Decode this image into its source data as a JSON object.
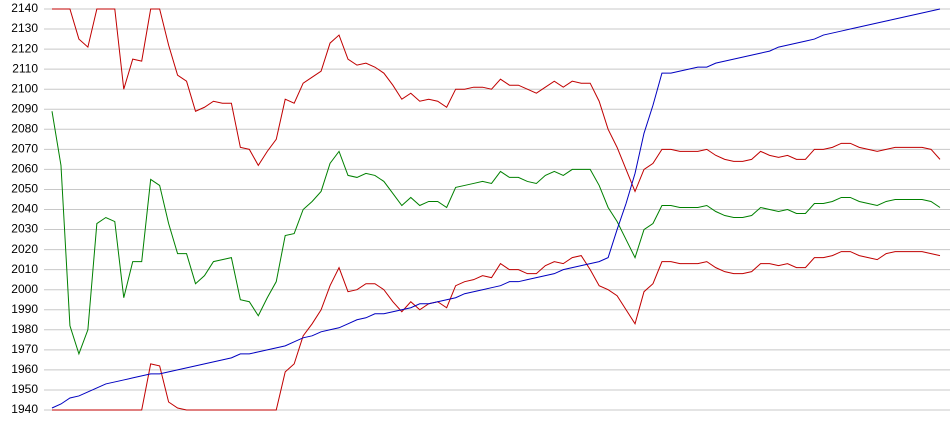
{
  "chart_data": {
    "type": "line",
    "ylim": [
      1940,
      2140
    ],
    "yticks": [
      1940,
      1950,
      1960,
      1970,
      1980,
      1990,
      2000,
      2010,
      2020,
      2030,
      2040,
      2050,
      2060,
      2070,
      2080,
      2090,
      2100,
      2110,
      2120,
      2130,
      2140
    ],
    "grid": true,
    "series": [
      {
        "color": "#c00000",
        "values": [
          2140,
          2140,
          2140,
          2125,
          2121,
          2140,
          2140,
          2140,
          2100,
          2115,
          2114,
          2140,
          2140,
          2122,
          2107,
          2104,
          2089,
          2091,
          2094,
          2093,
          2093,
          2071,
          2070,
          2062,
          2069,
          2075,
          2095,
          2093,
          2103,
          2106,
          2109,
          2123,
          2127,
          2115,
          2112,
          2113,
          2111,
          2108,
          2102,
          2095,
          2098,
          2094,
          2095,
          2094,
          2091,
          2100,
          2100,
          2101,
          2101,
          2100,
          2105,
          2102,
          2102,
          2100,
          2098,
          2101,
          2104,
          2101,
          2104,
          2103,
          2103,
          2094,
          2080,
          2071,
          2060,
          2049,
          2060,
          2063,
          2070,
          2070,
          2069,
          2069,
          2069,
          2070,
          2067,
          2065,
          2064,
          2064,
          2065,
          2069,
          2067,
          2066,
          2067,
          2065,
          2065,
          2070,
          2070,
          2071,
          2073,
          2073,
          2071,
          2070,
          2069,
          2070,
          2071,
          2071,
          2071,
          2071,
          2070,
          2065
        ]
      },
      {
        "color": "#008000",
        "values": [
          2089,
          2062,
          1982,
          1968,
          1980,
          2033,
          2036,
          2034,
          1996,
          2014,
          2014,
          2055,
          2052,
          2033,
          2018,
          2018,
          2003,
          2007,
          2014,
          2015,
          2016,
          1995,
          1994,
          1987,
          1996,
          2004,
          2027,
          2028,
          2040,
          2044,
          2049,
          2063,
          2069,
          2057,
          2056,
          2058,
          2057,
          2054,
          2048,
          2042,
          2046,
          2042,
          2044,
          2044,
          2041,
          2051,
          2052,
          2053,
          2054,
          2053,
          2059,
          2056,
          2056,
          2054,
          2053,
          2057,
          2059,
          2057,
          2060,
          2060,
          2060,
          2052,
          2041,
          2034,
          2025,
          2016,
          2030,
          2033,
          2042,
          2042,
          2041,
          2041,
          2041,
          2042,
          2039,
          2037,
          2036,
          2036,
          2037,
          2041,
          2040,
          2039,
          2040,
          2038,
          2038,
          2043,
          2043,
          2044,
          2046,
          2046,
          2044,
          2043,
          2042,
          2044,
          2045,
          2045,
          2045,
          2045,
          2044,
          2041
        ]
      },
      {
        "color": "#c00000",
        "values": [
          1940,
          1940,
          1940,
          1940,
          1940,
          1940,
          1940,
          1940,
          1940,
          1940,
          1940,
          1963,
          1962,
          1944,
          1941,
          1940,
          1940,
          1940,
          1940,
          1940,
          1940,
          1940,
          1940,
          1940,
          1940,
          1940,
          1959,
          1963,
          1977,
          1983,
          1990,
          2002,
          2011,
          1999,
          2000,
          2003,
          2003,
          2000,
          1994,
          1989,
          1994,
          1990,
          1993,
          1994,
          1991,
          2002,
          2004,
          2005,
          2007,
          2006,
          2013,
          2010,
          2010,
          2008,
          2008,
          2012,
          2014,
          2013,
          2016,
          2017,
          2010,
          2002,
          2000,
          1997,
          1990,
          1983,
          1999,
          2003,
          2014,
          2014,
          2013,
          2013,
          2013,
          2014,
          2011,
          2009,
          2008,
          2008,
          2009,
          2013,
          2013,
          2012,
          2013,
          2011,
          2011,
          2016,
          2016,
          2017,
          2019,
          2019,
          2017,
          2016,
          2015,
          2018,
          2019,
          2019,
          2019,
          2019,
          2018,
          2017
        ]
      },
      {
        "color": "#0000c0",
        "values": [
          1941,
          1943,
          1946,
          1947,
          1949,
          1951,
          1953,
          1954,
          1955,
          1956,
          1957,
          1958,
          1958,
          1959,
          1960,
          1961,
          1962,
          1963,
          1964,
          1965,
          1966,
          1968,
          1968,
          1969,
          1970,
          1971,
          1972,
          1974,
          1976,
          1977,
          1979,
          1980,
          1981,
          1983,
          1985,
          1986,
          1988,
          1988,
          1989,
          1990,
          1991,
          1993,
          1993,
          1994,
          1995,
          1996,
          1998,
          1999,
          2000,
          2001,
          2002,
          2004,
          2004,
          2005,
          2006,
          2007,
          2008,
          2010,
          2011,
          2012,
          2013,
          2014,
          2016,
          2030,
          2043,
          2058,
          2078,
          2092,
          2108,
          2108,
          2109,
          2110,
          2111,
          2111,
          2113,
          2114,
          2115,
          2116,
          2117,
          2118,
          2119,
          2121,
          2122,
          2123,
          2124,
          2125,
          2127,
          2128,
          2129,
          2130,
          2131,
          2132,
          2133,
          2134,
          2135,
          2136,
          2137,
          2138,
          2139,
          2140
        ]
      }
    ]
  }
}
